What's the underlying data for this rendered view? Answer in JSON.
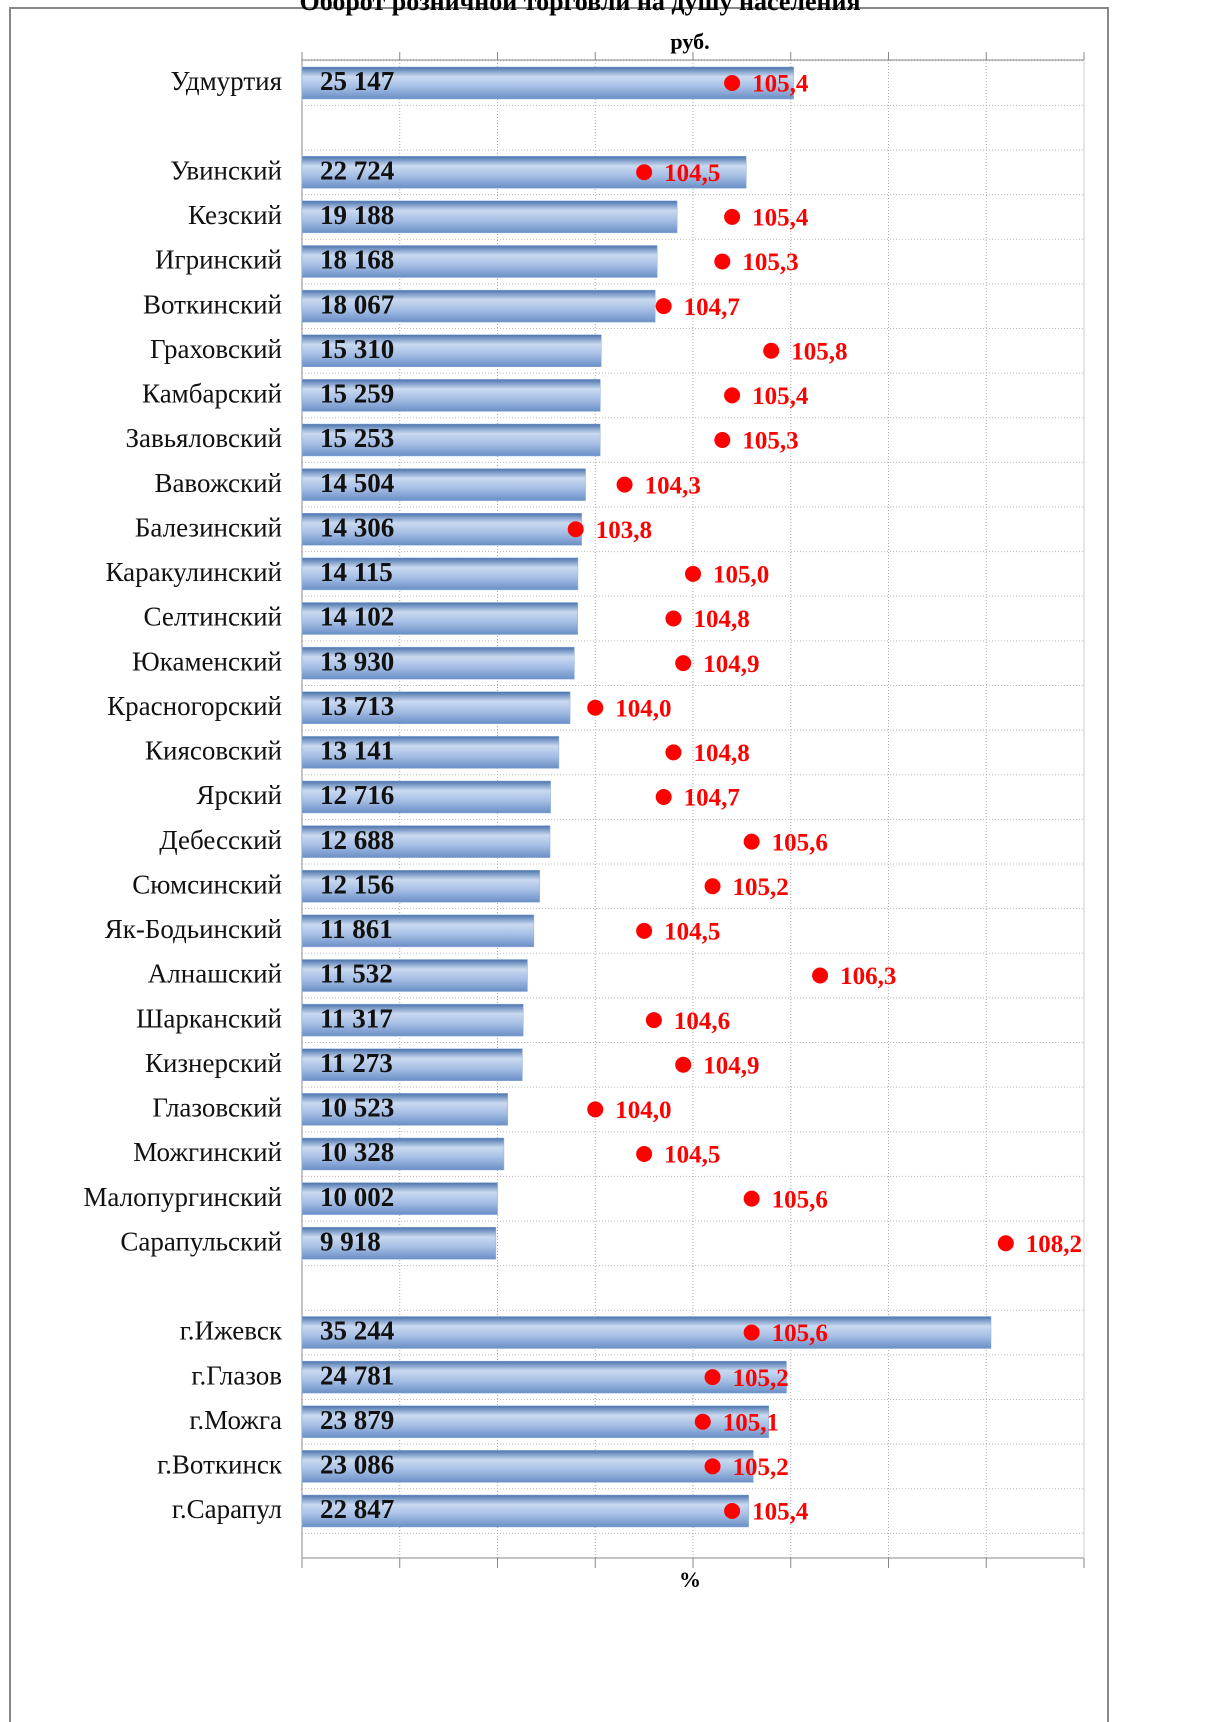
{
  "chart_data": {
    "type": "bar",
    "orientation": "horizontal",
    "title": "Оборот розничной торговли на душу населения",
    "x_label": "руб.",
    "x2_label": "%",
    "categories": [
      "Удмуртия",
      null,
      "Увинский",
      "Кезский",
      "Игринский",
      "Воткинский",
      "Граховский",
      "Камбарский",
      "Завьяловский",
      "Вавожский",
      "Балезинский",
      "Каракулинский",
      "Селтинский",
      "Юкаменский",
      "Красногорский",
      "Киясовский",
      "Ярский",
      "Дебесский",
      "Сюмсинский",
      "Як-Бодьинский",
      "Алнашский",
      "Шарканский",
      "Кизнерский",
      "Глазовский",
      "Можгинский",
      "Малопургинский",
      "Сарапульский",
      null,
      "г.Ижевск",
      "г.Глазов",
      "г.Можга",
      "г.Воткинск",
      "г.Сарапул"
    ],
    "series": [
      {
        "color": "#8fb0dd",
        "values": [
          25147,
          null,
          22724,
          19188,
          18168,
          18067,
          15310,
          15259,
          15253,
          14504,
          14306,
          14115,
          14102,
          13930,
          13713,
          13141,
          12716,
          12688,
          12156,
          11861,
          11532,
          11317,
          11273,
          10523,
          10328,
          10002,
          9918,
          null,
          35244,
          24781,
          23879,
          23086,
          22847
        ],
        "value_labels": [
          "25 147",
          null,
          "22 724",
          "19 188",
          "18 168",
          "18 067",
          "15 310",
          "15 259",
          "15 253",
          "14 504",
          "14 306",
          "14 115",
          "14 102",
          "13 930",
          "13 713",
          "13 141",
          "12 716",
          "12 688",
          "12 156",
          "11 861",
          "11 532",
          "11 317",
          "11 273",
          "10 523",
          "10 328",
          "10 002",
          "9 918",
          null,
          "35 244",
          "24 781",
          "23 879",
          "23 086",
          "22 847"
        ]
      },
      {
        "color": "#ff0000",
        "type": "scatter",
        "axis": "x2",
        "values": [
          105.4,
          null,
          104.5,
          105.4,
          105.3,
          104.7,
          105.8,
          105.4,
          105.3,
          104.3,
          103.8,
          105.0,
          104.8,
          104.9,
          104.0,
          104.8,
          104.7,
          105.6,
          105.2,
          104.5,
          106.3,
          104.6,
          104.9,
          104.0,
          104.5,
          105.6,
          108.2,
          null,
          105.6,
          105.2,
          105.1,
          105.2,
          105.4
        ],
        "value_labels": [
          "105,4",
          null,
          "104,5",
          "105,4",
          "105,3",
          "104,7",
          "105,8",
          "105,4",
          "105,3",
          "104,3",
          "103,8",
          "105,0",
          "104,8",
          "104,9",
          "104,0",
          "104,8",
          "104,7",
          "105,6",
          "105,2",
          "104,5",
          "106,3",
          "104,6",
          "104,9",
          "104,0",
          "104,5",
          "105,6",
          "108,2",
          null,
          "105,6",
          "105,2",
          "105,1",
          "105,2",
          "105,4"
        ]
      }
    ],
    "xlim": [
      0,
      40000
    ],
    "xticks": [
      0,
      5000,
      10000,
      15000,
      20000,
      25000,
      30000,
      35000,
      40000
    ],
    "x2lim": [
      101,
      109
    ],
    "x2ticks": [
      101,
      102,
      103,
      104,
      105,
      106,
      107,
      108,
      109
    ],
    "grid": true
  }
}
